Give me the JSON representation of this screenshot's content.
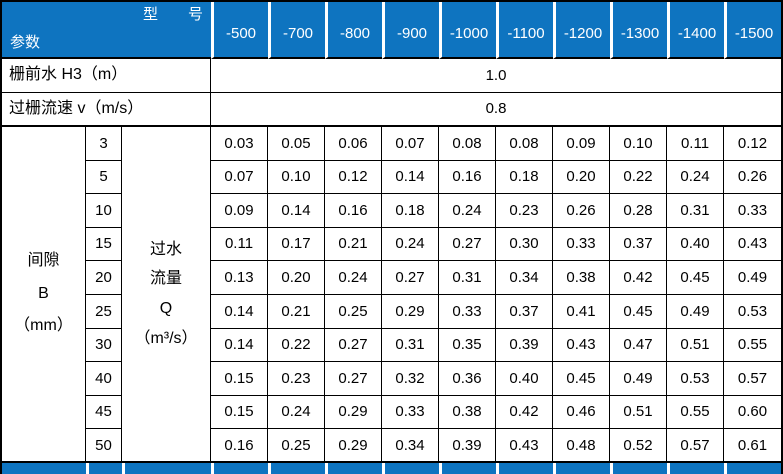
{
  "colors": {
    "header_blue": "#0E74C0",
    "border": "#000000",
    "header_text": "#FFFFFF",
    "body_text": "#000000"
  },
  "header": {
    "model_label": "型　　号",
    "param_label": "参数",
    "columns": [
      "-500",
      "-700",
      "-800",
      "-900",
      "-1000",
      "-1100",
      "-1200",
      "-1300",
      "-1400",
      "-1500"
    ]
  },
  "rows": {
    "water_depth": {
      "label": "栅前水 H3（m）",
      "value": "1.0"
    },
    "velocity": {
      "label": "过栅流速 v（m/s）",
      "value": "0.8"
    }
  },
  "gap_section": {
    "gap_label_lines": [
      "间隙",
      "B",
      "（mm）"
    ],
    "flow_label_lines": [
      "过水",
      "流量",
      "Q",
      "（m³/s）"
    ],
    "rows": [
      {
        "gap": "3",
        "values": [
          "0.03",
          "0.05",
          "0.06",
          "0.07",
          "0.08",
          "0.08",
          "0.09",
          "0.10",
          "0.11",
          "0.12"
        ]
      },
      {
        "gap": "5",
        "values": [
          "0.07",
          "0.10",
          "0.12",
          "0.14",
          "0.16",
          "0.18",
          "0.20",
          "0.22",
          "0.24",
          "0.26"
        ]
      },
      {
        "gap": "10",
        "values": [
          "0.09",
          "0.14",
          "0.16",
          "0.18",
          "0.24",
          "0.23",
          "0.26",
          "0.28",
          "0.31",
          "0.33"
        ]
      },
      {
        "gap": "15",
        "values": [
          "0.11",
          "0.17",
          "0.21",
          "0.24",
          "0.27",
          "0.30",
          "0.33",
          "0.37",
          "0.40",
          "0.43"
        ]
      },
      {
        "gap": "20",
        "values": [
          "0.13",
          "0.20",
          "0.24",
          "0.27",
          "0.31",
          "0.34",
          "0.38",
          "0.42",
          "0.45",
          "0.49"
        ]
      },
      {
        "gap": "25",
        "values": [
          "0.14",
          "0.21",
          "0.25",
          "0.29",
          "0.33",
          "0.37",
          "0.41",
          "0.45",
          "0.49",
          "0.53"
        ]
      },
      {
        "gap": "30",
        "values": [
          "0.14",
          "0.22",
          "0.27",
          "0.31",
          "0.35",
          "0.39",
          "0.43",
          "0.47",
          "0.51",
          "0.55"
        ]
      },
      {
        "gap": "40",
        "values": [
          "0.15",
          "0.23",
          "0.27",
          "0.32",
          "0.36",
          "0.40",
          "0.45",
          "0.49",
          "0.53",
          "0.57"
        ]
      },
      {
        "gap": "45",
        "values": [
          "0.15",
          "0.24",
          "0.29",
          "0.33",
          "0.38",
          "0.42",
          "0.46",
          "0.51",
          "0.55",
          "0.60"
        ]
      },
      {
        "gap": "50",
        "values": [
          "0.16",
          "0.25",
          "0.29",
          "0.34",
          "0.39",
          "0.43",
          "0.48",
          "0.52",
          "0.57",
          "0.61"
        ]
      }
    ]
  }
}
